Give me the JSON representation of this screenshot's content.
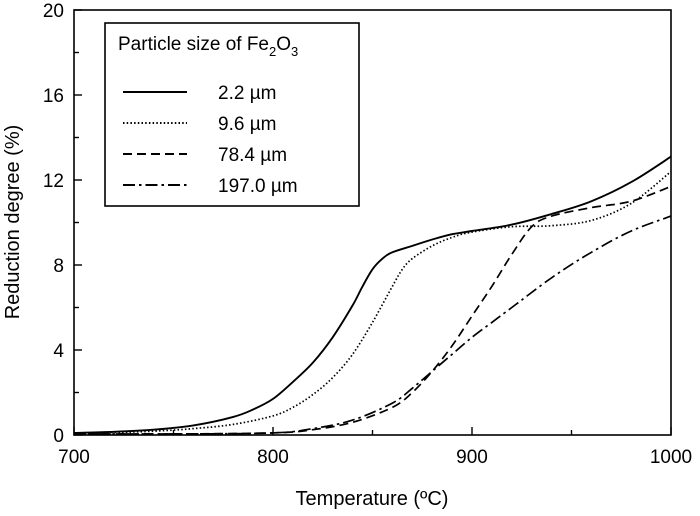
{
  "chart_data": {
    "type": "line",
    "xlabel": "Temperature (ºC)",
    "ylabel": "Reduction degree (%)",
    "xlim": [
      700,
      1000
    ],
    "ylim": [
      0,
      20
    ],
    "xticks": [
      700,
      800,
      900,
      1000
    ],
    "yticks": [
      0,
      4,
      8,
      12,
      16,
      20
    ],
    "grid": false,
    "legend": {
      "title_prefix": "Particle size of Fe",
      "title_sub1": "2",
      "title_mid": "O",
      "title_sub2": "3",
      "placement": "top-left"
    },
    "series": [
      {
        "name": "2.2 µm",
        "style": "solid",
        "x": [
          700,
          720,
          740,
          760,
          780,
          790,
          800,
          810,
          820,
          830,
          840,
          845,
          850,
          855,
          860,
          870,
          880,
          890,
          900,
          920,
          940,
          960,
          980,
          1000
        ],
        "y": [
          0.1,
          0.15,
          0.25,
          0.45,
          0.85,
          1.2,
          1.7,
          2.5,
          3.4,
          4.6,
          6.1,
          7.0,
          7.8,
          8.3,
          8.6,
          8.9,
          9.2,
          9.45,
          9.6,
          9.9,
          10.4,
          11.0,
          11.9,
          13.1
        ]
      },
      {
        "name": "9.6 µm",
        "style": "dotted",
        "x": [
          700,
          720,
          740,
          760,
          780,
          800,
          810,
          820,
          830,
          840,
          850,
          860,
          865,
          870,
          880,
          890,
          900,
          920,
          940,
          960,
          980,
          1000
        ],
        "y": [
          0.1,
          0.12,
          0.18,
          0.3,
          0.5,
          0.9,
          1.3,
          1.9,
          2.7,
          3.8,
          5.3,
          7.0,
          7.8,
          8.3,
          8.9,
          9.3,
          9.55,
          9.8,
          9.85,
          10.1,
          10.9,
          12.4
        ]
      },
      {
        "name": "78.4 µm",
        "style": "dashed",
        "x": [
          700,
          750,
          800,
          820,
          840,
          860,
          870,
          880,
          890,
          900,
          910,
          920,
          930,
          940,
          960,
          980,
          1000
        ],
        "y": [
          0.05,
          0.05,
          0.1,
          0.25,
          0.6,
          1.3,
          2.0,
          3.0,
          4.2,
          5.6,
          7.0,
          8.5,
          9.8,
          10.3,
          10.7,
          11.0,
          11.7
        ]
      },
      {
        "name": "197.0 µm",
        "style": "dashdot",
        "x": [
          700,
          750,
          800,
          820,
          840,
          860,
          870,
          880,
          890,
          900,
          910,
          920,
          940,
          960,
          980,
          1000
        ],
        "y": [
          0.05,
          0.05,
          0.1,
          0.3,
          0.7,
          1.5,
          2.2,
          3.0,
          3.8,
          4.6,
          5.3,
          6.0,
          7.4,
          8.6,
          9.6,
          10.3
        ]
      }
    ]
  }
}
